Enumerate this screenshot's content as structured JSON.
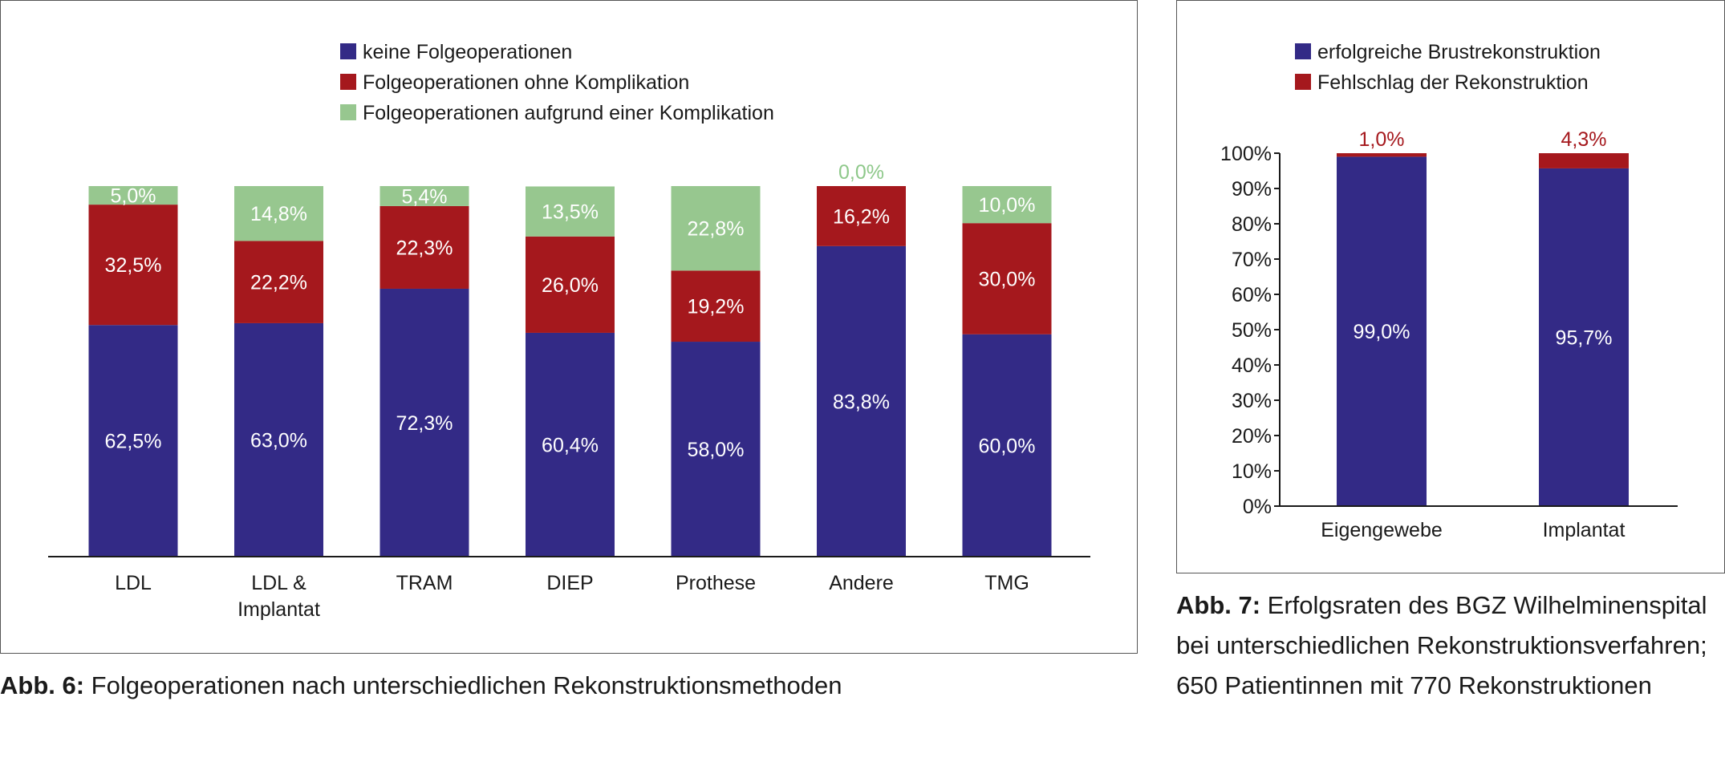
{
  "figures": [
    {
      "caption_label": "Abb. 6:",
      "caption_text": " Folgeoperationen nach unterschiedlichen Rekonstruktionsmethoden"
    },
    {
      "caption_label": "Abb. 7:",
      "caption_text": " Erfolgsraten des BGZ Wilhelminenspital bei unterschiedlichen Rekonstruktionsverfahren; 650 Patientinnen mit 770 Rekonstruktionen"
    }
  ],
  "chart_data": [
    {
      "type": "bar",
      "stacked": true,
      "categories": [
        [
          "LDL"
        ],
        [
          "LDL &",
          "Implantat"
        ],
        [
          "TRAM"
        ],
        [
          "DIEP"
        ],
        [
          "Prothese"
        ],
        [
          "Andere"
        ],
        [
          "TMG"
        ]
      ],
      "series": [
        {
          "name": "keine Folgeoperationen",
          "color": "#332a86",
          "label_color": "#ffffff",
          "values": [
            62.5,
            63.0,
            72.3,
            60.4,
            58.0,
            83.8,
            60.0
          ],
          "labels": [
            "62,5%",
            "63,0%",
            "72,3%",
            "60,4%",
            "58,0%",
            "83,8%",
            "60,0%"
          ]
        },
        {
          "name": "Folgeoperationen ohne Komplikation",
          "color": "#a5181d",
          "label_color": "#ffffff",
          "values": [
            32.5,
            22.2,
            22.3,
            26.0,
            19.2,
            16.2,
            30.0
          ],
          "labels": [
            "32,5%",
            "22,2%",
            "22,3%",
            "26,0%",
            "19,2%",
            "16,2%",
            "30,0%"
          ]
        },
        {
          "name": "Folgeoperationen aufgrund einer Komplikation",
          "color": "#97c78f",
          "label_color": "#ffffff",
          "values": [
            5.0,
            14.8,
            5.4,
            13.5,
            22.8,
            0.0,
            10.0
          ],
          "labels": [
            "5,0%",
            "14,8%",
            "5,4%",
            "13,5%",
            "22,8%",
            "0,0%",
            "10,0%"
          ]
        }
      ],
      "outside_label_color": "#8ec88a",
      "legend_position": "top",
      "grid": false,
      "ylim": [
        0,
        100
      ]
    },
    {
      "type": "bar",
      "stacked": true,
      "categories": [
        [
          "Eigengewebe"
        ],
        [
          "Implantat"
        ]
      ],
      "series": [
        {
          "name": "erfolgreiche Brustrekonstruktion",
          "color": "#332a86",
          "label_color": "#ffffff",
          "values": [
            99.0,
            95.7
          ],
          "labels": [
            "99,0%",
            "95,7%"
          ]
        },
        {
          "name": "Fehlschlag der Rekonstruktion",
          "color": "#a5181d",
          "label_color": "#ffffff",
          "values": [
            1.0,
            4.3
          ],
          "labels": [
            "1,0%",
            "4,3%"
          ]
        }
      ],
      "outside_label_color": "#a5181d",
      "y_ticks": [
        "0%",
        "10%",
        "20%",
        "30%",
        "40%",
        "50%",
        "60%",
        "70%",
        "80%",
        "90%",
        "100%"
      ],
      "legend_position": "top",
      "grid": false,
      "ylim": [
        0,
        100
      ]
    }
  ]
}
